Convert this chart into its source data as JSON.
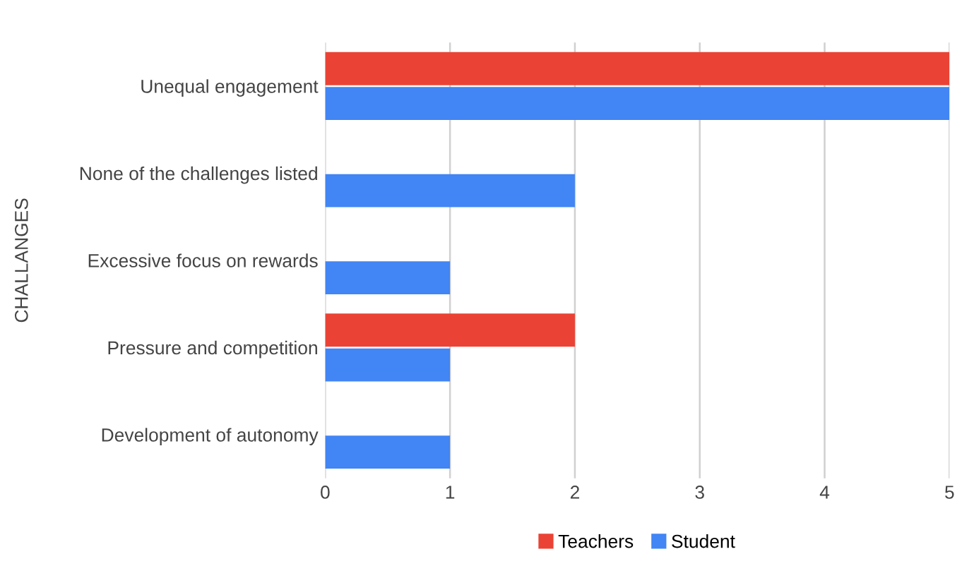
{
  "chart_data": {
    "type": "bar",
    "orientation": "horizontal",
    "ylabel": "CHALLANGES",
    "categories": [
      "Unequal engagement",
      "None of the challenges listed",
      "Excessive focus on rewards",
      "Pressure and competition",
      "Development of autonomy"
    ],
    "series": [
      {
        "name": "Teachers",
        "color": "#ea4335",
        "values": [
          5,
          0,
          0,
          2,
          0
        ]
      },
      {
        "name": "Student",
        "color": "#4285f4",
        "values": [
          5,
          2,
          1,
          1,
          1
        ]
      }
    ],
    "xlim": [
      0,
      5
    ],
    "xticks": [
      0,
      1,
      2,
      3,
      4,
      5
    ],
    "grid": "x",
    "legend": "bottom"
  }
}
